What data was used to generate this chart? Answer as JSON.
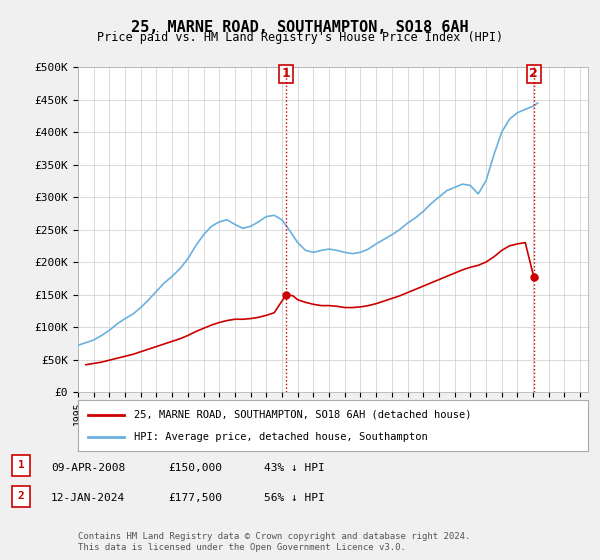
{
  "title": "25, MARNE ROAD, SOUTHAMPTON, SO18 6AH",
  "subtitle": "Price paid vs. HM Land Registry's House Price Index (HPI)",
  "ylabel_ticks": [
    "£0",
    "£50K",
    "£100K",
    "£150K",
    "£200K",
    "£250K",
    "£300K",
    "£350K",
    "£400K",
    "£450K",
    "£500K"
  ],
  "ytick_values": [
    0,
    50000,
    100000,
    150000,
    200000,
    250000,
    300000,
    350000,
    400000,
    450000,
    500000
  ],
  "ylim": [
    0,
    500000
  ],
  "xlim_start": 1995.0,
  "xlim_end": 2027.5,
  "xtick_years": [
    1995,
    1996,
    1997,
    1998,
    1999,
    2000,
    2001,
    2002,
    2003,
    2004,
    2005,
    2006,
    2007,
    2008,
    2009,
    2010,
    2011,
    2012,
    2013,
    2014,
    2015,
    2016,
    2017,
    2018,
    2019,
    2020,
    2021,
    2022,
    2023,
    2024,
    2025,
    2026,
    2027
  ],
  "hpi_color": "#6ab0de",
  "price_color": "#cc0000",
  "vline_color": "#cc0000",
  "vline_style": ":",
  "background_color": "#f0f0f0",
  "plot_bg_color": "#ffffff",
  "grid_color": "#cccccc",
  "legend_label_red": "25, MARNE ROAD, SOUTHAMPTON, SO18 6AH (detached house)",
  "legend_label_blue": "HPI: Average price, detached house, Southampton",
  "transaction1_label": "1",
  "transaction1_date": "09-APR-2008",
  "transaction1_price": "£150,000",
  "transaction1_hpi": "43% ↓ HPI",
  "transaction1_year": 2008.27,
  "transaction2_label": "2",
  "transaction2_date": "12-JAN-2024",
  "transaction2_price": "£177,500",
  "transaction2_hpi": "56% ↓ HPI",
  "transaction2_year": 2024.04,
  "footer": "Contains HM Land Registry data © Crown copyright and database right 2024.\nThis data is licensed under the Open Government Licence v3.0.",
  "hpi_x": [
    1995.0,
    1995.5,
    1996.0,
    1996.5,
    1997.0,
    1997.5,
    1998.0,
    1998.5,
    1999.0,
    1999.5,
    2000.0,
    2000.5,
    2001.0,
    2001.5,
    2002.0,
    2002.5,
    2003.0,
    2003.5,
    2004.0,
    2004.5,
    2005.0,
    2005.5,
    2006.0,
    2006.5,
    2007.0,
    2007.5,
    2008.0,
    2008.5,
    2009.0,
    2009.5,
    2010.0,
    2010.5,
    2011.0,
    2011.5,
    2012.0,
    2012.5,
    2013.0,
    2013.5,
    2014.0,
    2014.5,
    2015.0,
    2015.5,
    2016.0,
    2016.5,
    2017.0,
    2017.5,
    2018.0,
    2018.5,
    2019.0,
    2019.5,
    2020.0,
    2020.5,
    2021.0,
    2021.5,
    2022.0,
    2022.5,
    2023.0,
    2023.5,
    2024.0,
    2024.3
  ],
  "hpi_y": [
    72000,
    76000,
    80000,
    87000,
    95000,
    105000,
    113000,
    120000,
    130000,
    142000,
    155000,
    168000,
    178000,
    190000,
    205000,
    225000,
    242000,
    255000,
    262000,
    265000,
    258000,
    252000,
    255000,
    262000,
    270000,
    272000,
    265000,
    248000,
    230000,
    218000,
    215000,
    218000,
    220000,
    218000,
    215000,
    213000,
    215000,
    220000,
    228000,
    235000,
    242000,
    250000,
    260000,
    268000,
    278000,
    290000,
    300000,
    310000,
    315000,
    320000,
    318000,
    305000,
    325000,
    365000,
    400000,
    420000,
    430000,
    435000,
    440000,
    445000
  ],
  "price_x": [
    1995.5,
    1996.0,
    1996.5,
    1997.0,
    1997.5,
    1998.0,
    1998.5,
    1999.0,
    1999.5,
    2000.0,
    2000.5,
    2001.0,
    2001.5,
    2002.0,
    2002.5,
    2003.0,
    2003.5,
    2004.0,
    2004.5,
    2005.0,
    2005.5,
    2006.0,
    2006.5,
    2007.0,
    2007.5,
    2008.27,
    2008.7,
    2009.0,
    2009.5,
    2010.0,
    2010.5,
    2011.0,
    2011.5,
    2012.0,
    2012.5,
    2013.0,
    2013.5,
    2014.0,
    2014.5,
    2015.0,
    2015.5,
    2016.0,
    2016.5,
    2017.0,
    2017.5,
    2018.0,
    2018.5,
    2019.0,
    2019.5,
    2020.0,
    2020.5,
    2021.0,
    2021.5,
    2022.0,
    2022.5,
    2023.0,
    2023.5,
    2024.04,
    2024.3
  ],
  "price_y": [
    42000,
    44000,
    46000,
    49000,
    52000,
    55000,
    58000,
    62000,
    66000,
    70000,
    74000,
    78000,
    82000,
    87000,
    93000,
    98000,
    103000,
    107000,
    110000,
    112000,
    112000,
    113000,
    115000,
    118000,
    122000,
    150000,
    148000,
    142000,
    138000,
    135000,
    133000,
    133000,
    132000,
    130000,
    130000,
    131000,
    133000,
    136000,
    140000,
    144000,
    148000,
    153000,
    158000,
    163000,
    168000,
    173000,
    178000,
    183000,
    188000,
    192000,
    195000,
    200000,
    208000,
    218000,
    225000,
    228000,
    230000,
    177500,
    175000
  ]
}
